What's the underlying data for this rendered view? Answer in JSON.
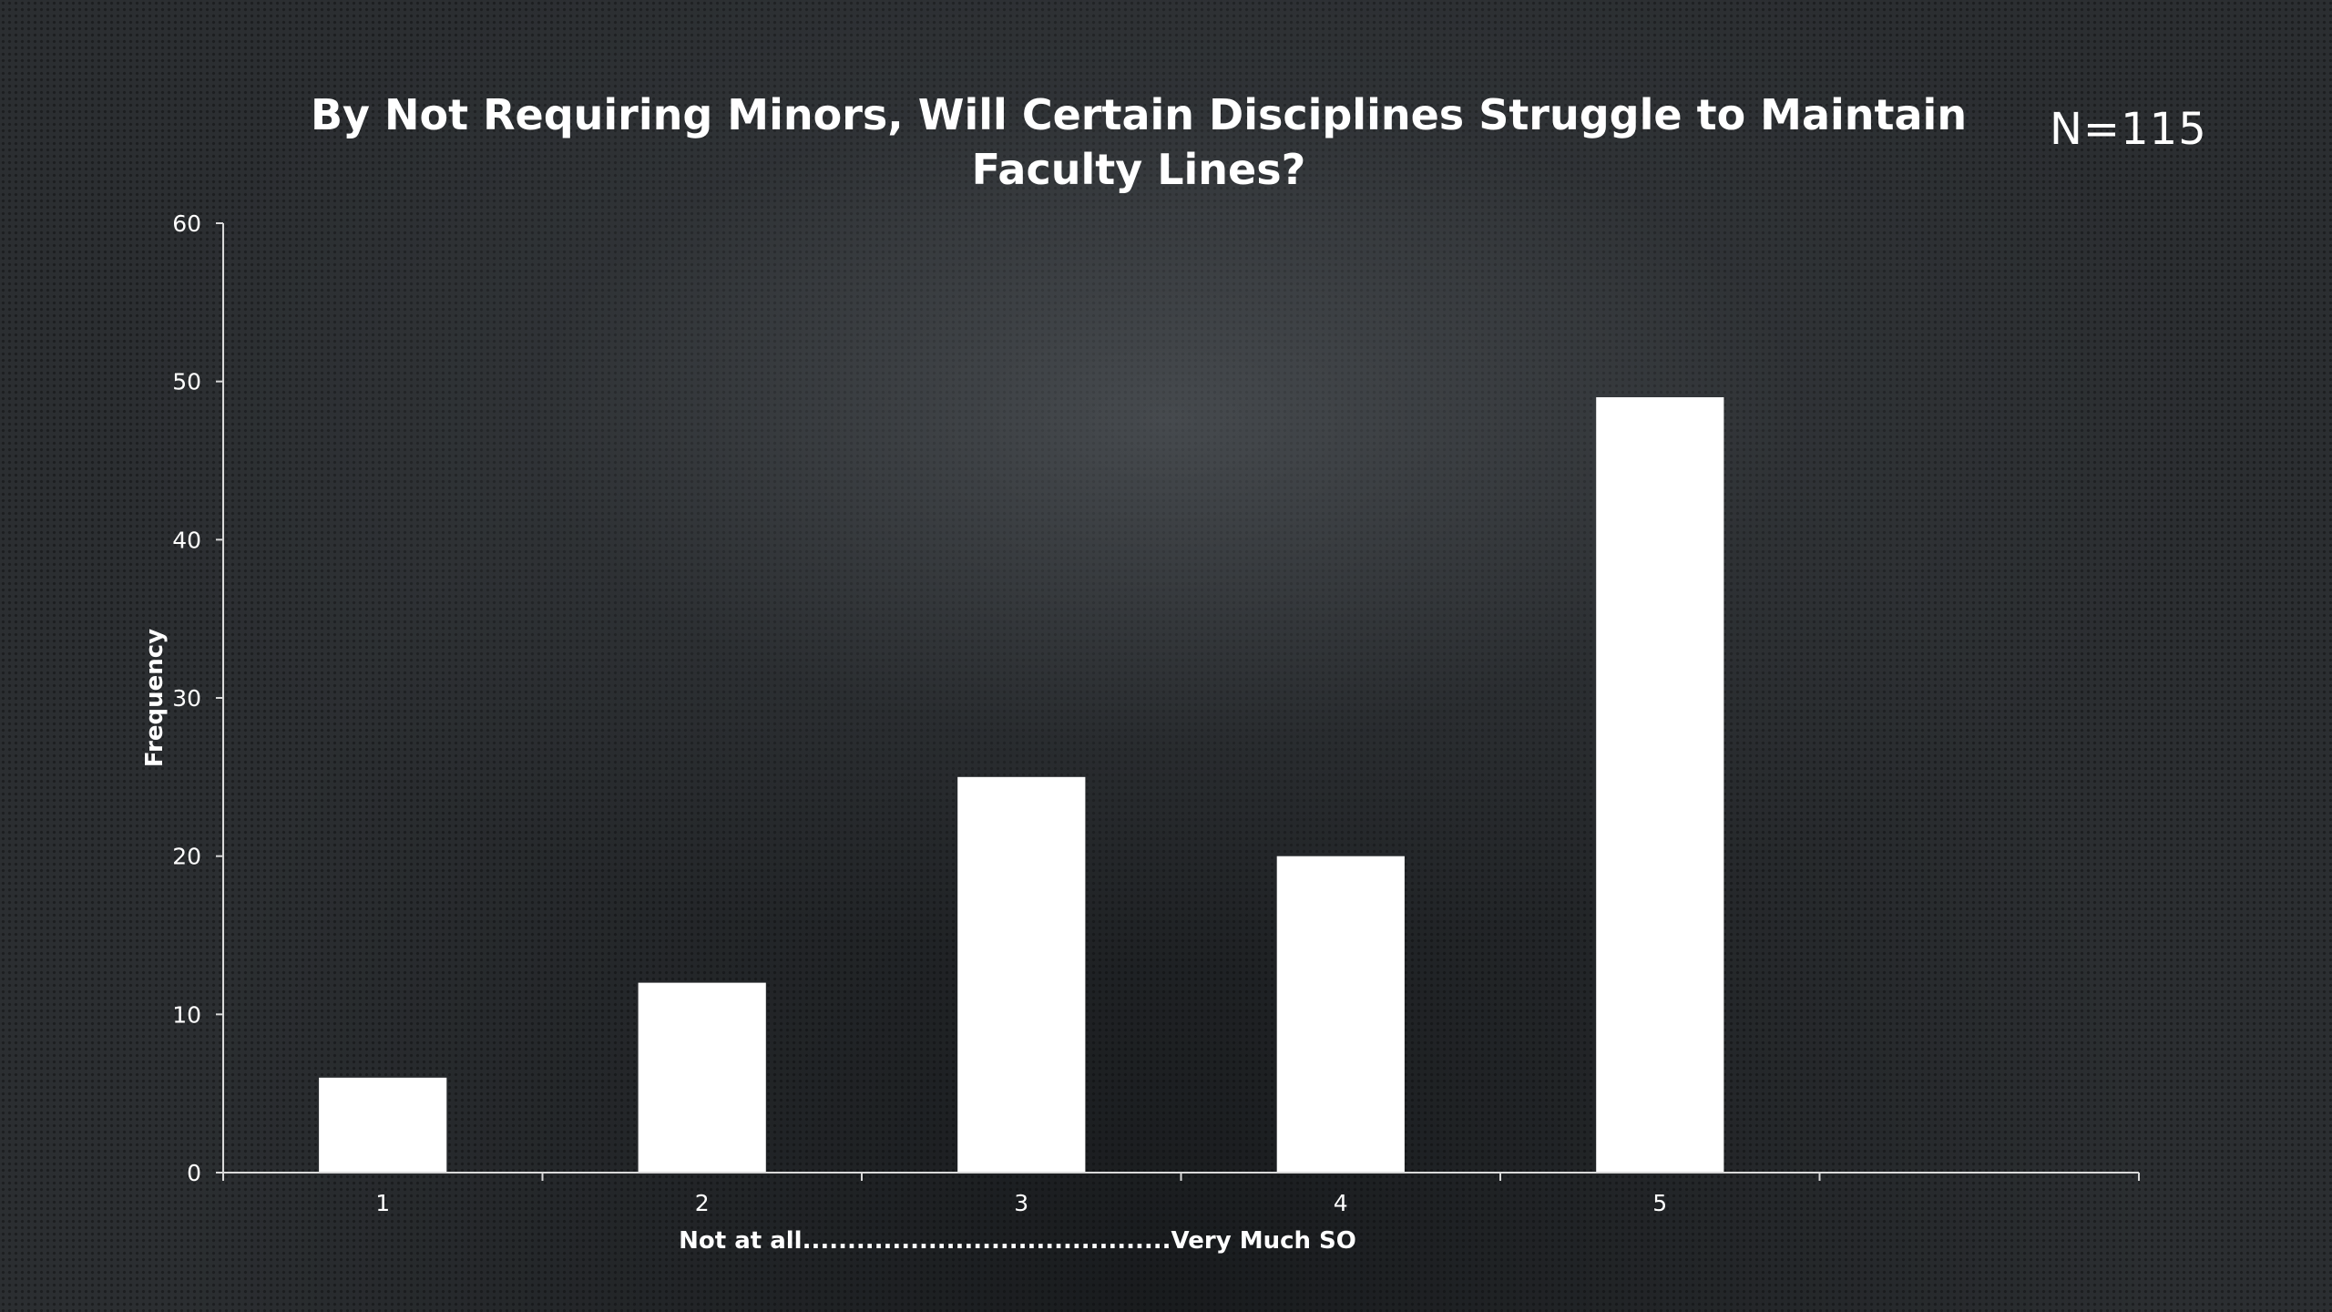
{
  "chart_data": {
    "type": "bar",
    "title": "By Not Requiring Minors, Will Certain Disciplines Struggle to Maintain Faculty Lines?",
    "annotation": "N=115",
    "categories": [
      "1",
      "2",
      "3",
      "4",
      "5",
      ""
    ],
    "values": [
      6,
      12,
      25,
      20,
      49,
      null
    ],
    "xlabel": "Not at all.........................................Very Much SO",
    "ylabel": "Frequency",
    "ylim": [
      0,
      60
    ],
    "yticks": [
      0,
      10,
      20,
      30,
      40,
      50,
      60
    ],
    "grid": false,
    "legend": "none",
    "colors": {
      "bar": "#ffffff",
      "axis": "#d9d9d9",
      "text": "#ffffff"
    }
  }
}
